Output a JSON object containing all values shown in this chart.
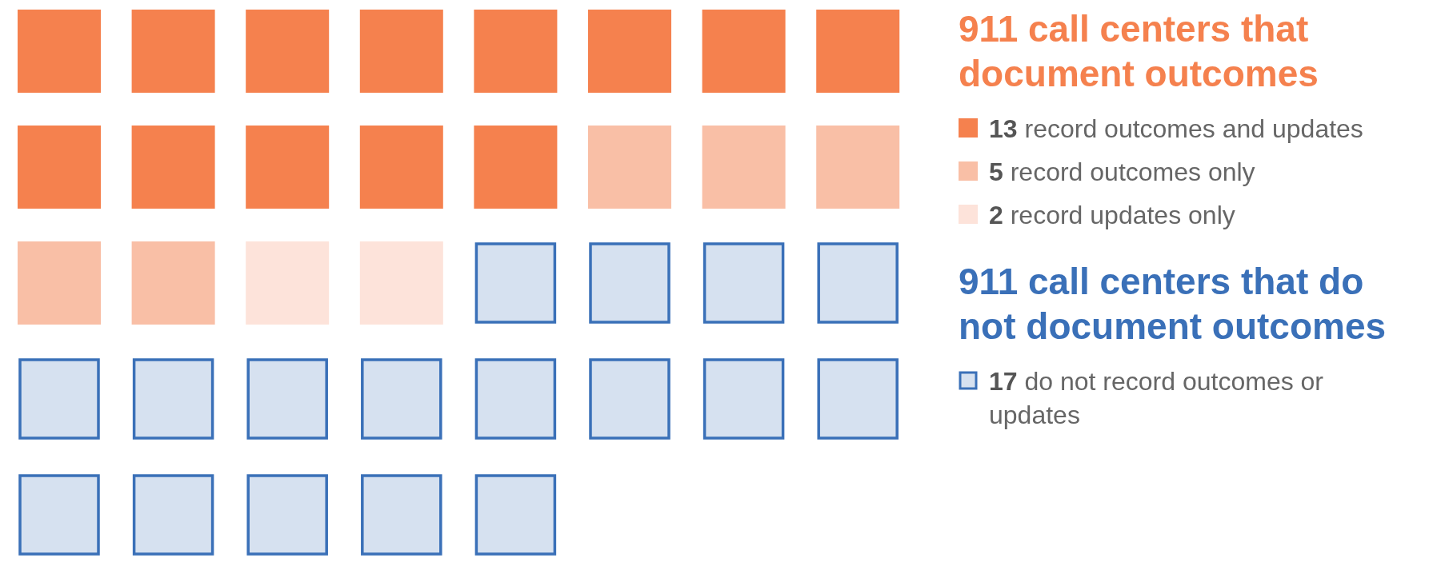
{
  "chart_data": {
    "type": "other",
    "categories": [
      "record outcomes and updates",
      "record outcomes only",
      "record updates only",
      "do not record outcomes or updates"
    ],
    "values": [
      13,
      5,
      2,
      17
    ],
    "colors": [
      "#f5814e",
      "#f9bfa6",
      "#fde3da",
      "#d6e1f0"
    ],
    "data_labels": true,
    "annotations": [
      "911 call centers that document outcomes",
      "911 call centers that do not document outcomes"
    ]
  }
}
